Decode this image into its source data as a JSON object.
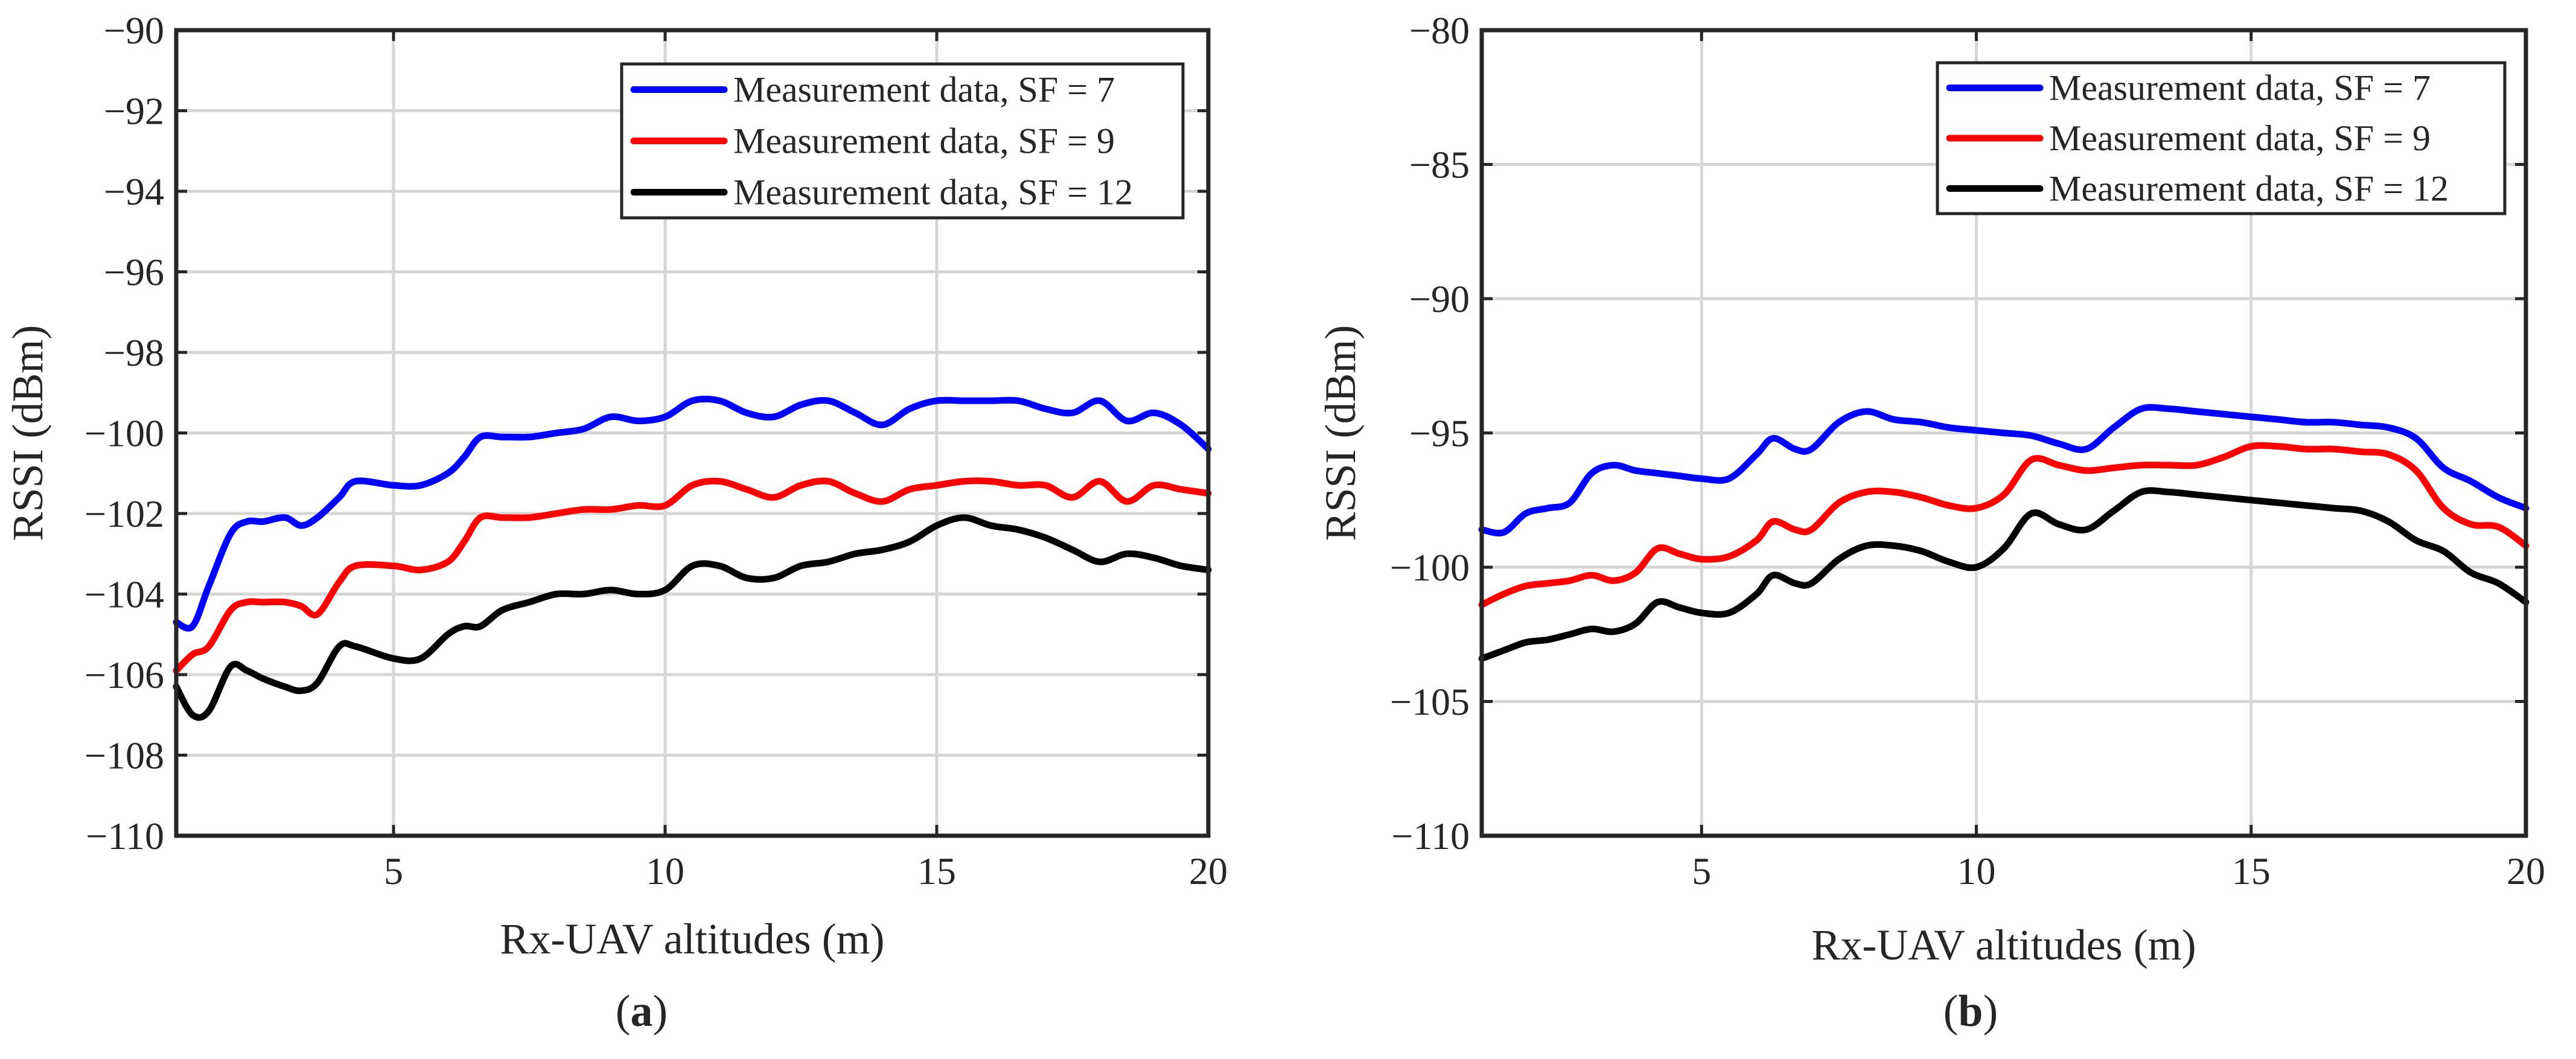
{
  "chart_data": [
    {
      "type": "line",
      "caption": "(a)",
      "caption_bold": "a",
      "xlabel": "Rx-UAV altitudes (m)",
      "ylabel": "RSSI (dBm)",
      "xlim": [
        1,
        20
      ],
      "ylim": [
        -110,
        -90
      ],
      "xticks": [
        5,
        10,
        15,
        20
      ],
      "yticks": [
        -110,
        -108,
        -106,
        -104,
        -102,
        -100,
        -98,
        -96,
        -94,
        -92,
        -90
      ],
      "xtick_labels": [
        "5",
        "10",
        "15",
        "20"
      ],
      "ytick_labels": [
        "−110",
        "−108",
        "−106",
        "−104",
        "−102",
        "−100",
        "−98",
        "−96",
        "−94",
        "−92",
        "−90"
      ],
      "grid": true,
      "legend": "top-right",
      "series": [
        {
          "name": "Measurement data, SF = 7",
          "color": "#0000ff",
          "x": [
            1,
            1.3,
            1.6,
            2,
            2.3,
            2.6,
            3,
            3.3,
            3.6,
            4,
            4.3,
            5,
            5.5,
            6,
            6.3,
            6.6,
            7,
            7.5,
            8,
            8.5,
            9,
            9.5,
            10,
            10.5,
            11,
            11.5,
            12,
            12.5,
            13,
            13.5,
            14,
            14.5,
            15,
            15.5,
            16,
            16.5,
            17,
            17.5,
            18,
            18.5,
            19,
            19.5,
            20
          ],
          "y": [
            -104.7,
            -104.8,
            -103.8,
            -102.5,
            -102.2,
            -102.2,
            -102.1,
            -102.3,
            -102.1,
            -101.6,
            -101.2,
            -101.3,
            -101.3,
            -101.0,
            -100.6,
            -100.1,
            -100.1,
            -100.1,
            -100.0,
            -99.9,
            -99.6,
            -99.7,
            -99.6,
            -99.2,
            -99.2,
            -99.5,
            -99.6,
            -99.3,
            -99.2,
            -99.5,
            -99.8,
            -99.4,
            -99.2,
            -99.2,
            -99.2,
            -99.2,
            -99.4,
            -99.5,
            -99.2,
            -99.7,
            -99.5,
            -99.8,
            -100.4
          ]
        },
        {
          "name": "Measurement data, SF = 9",
          "color": "#ff0000",
          "x": [
            1,
            1.3,
            1.6,
            2,
            2.3,
            2.6,
            3,
            3.3,
            3.6,
            4,
            4.3,
            5,
            5.5,
            6,
            6.3,
            6.6,
            7,
            7.5,
            8,
            8.5,
            9,
            9.5,
            10,
            10.5,
            11,
            11.5,
            12,
            12.5,
            13,
            13.5,
            14,
            14.5,
            15,
            15.5,
            16,
            16.5,
            17,
            17.5,
            18,
            18.5,
            19,
            19.5,
            20
          ],
          "y": [
            -105.9,
            -105.5,
            -105.3,
            -104.4,
            -104.2,
            -104.2,
            -104.2,
            -104.3,
            -104.5,
            -103.7,
            -103.3,
            -103.3,
            -103.4,
            -103.2,
            -102.7,
            -102.1,
            -102.1,
            -102.1,
            -102.0,
            -101.9,
            -101.9,
            -101.8,
            -101.8,
            -101.3,
            -101.2,
            -101.4,
            -101.6,
            -101.3,
            -101.2,
            -101.5,
            -101.7,
            -101.4,
            -101.3,
            -101.2,
            -101.2,
            -101.3,
            -101.3,
            -101.6,
            -101.2,
            -101.7,
            -101.3,
            -101.4,
            -101.5
          ]
        },
        {
          "name": "Measurement data, SF = 12",
          "color": "#000000",
          "x": [
            1,
            1.3,
            1.6,
            2,
            2.3,
            2.6,
            3,
            3.3,
            3.6,
            4,
            4.3,
            5,
            5.5,
            6,
            6.3,
            6.6,
            7,
            7.5,
            8,
            8.5,
            9,
            9.5,
            10,
            10.5,
            11,
            11.5,
            12,
            12.5,
            13,
            13.5,
            14,
            14.5,
            15,
            15.5,
            16,
            16.5,
            17,
            17.5,
            18,
            18.5,
            19,
            19.5,
            20
          ],
          "y": [
            -106.3,
            -107.0,
            -106.9,
            -105.8,
            -105.9,
            -106.1,
            -106.3,
            -106.4,
            -106.2,
            -105.3,
            -105.3,
            -105.6,
            -105.6,
            -105.0,
            -104.8,
            -104.8,
            -104.4,
            -104.2,
            -104.0,
            -104.0,
            -103.9,
            -104.0,
            -103.9,
            -103.3,
            -103.3,
            -103.6,
            -103.6,
            -103.3,
            -103.2,
            -103.0,
            -102.9,
            -102.7,
            -102.3,
            -102.1,
            -102.3,
            -102.4,
            -102.6,
            -102.9,
            -103.2,
            -103.0,
            -103.1,
            -103.3,
            -103.4
          ]
        }
      ]
    },
    {
      "type": "line",
      "caption": "(b)",
      "caption_bold": "b",
      "xlabel": "Rx-UAV altitudes (m)",
      "ylabel": "RSSI (dBm)",
      "xlim": [
        1,
        20
      ],
      "ylim": [
        -110,
        -80
      ],
      "xticks": [
        5,
        10,
        15,
        20
      ],
      "yticks": [
        -110,
        -105,
        -100,
        -95,
        -90,
        -85,
        -80
      ],
      "xtick_labels": [
        "5",
        "10",
        "15",
        "20"
      ],
      "ytick_labels": [
        "−110",
        "−105",
        "−100",
        "−95",
        "−90",
        "−85",
        "−80"
      ],
      "grid": true,
      "legend": "top-right",
      "series": [
        {
          "name": "Measurement data, SF = 7",
          "color": "#0000ff",
          "x": [
            1,
            1.4,
            1.8,
            2.2,
            2.6,
            3,
            3.4,
            3.8,
            4.2,
            4.6,
            5,
            5.5,
            6,
            6.3,
            6.7,
            7,
            7.5,
            8,
            8.5,
            9,
            9.5,
            10,
            10.5,
            11,
            11.5,
            12,
            12.5,
            13,
            13.5,
            14,
            14.5,
            15,
            15.5,
            16,
            16.5,
            17,
            17.5,
            18,
            18.5,
            19,
            19.5,
            20
          ],
          "y": [
            -98.6,
            -98.7,
            -98.0,
            -97.8,
            -97.6,
            -96.5,
            -96.2,
            -96.4,
            -96.5,
            -96.6,
            -96.7,
            -96.7,
            -95.8,
            -95.2,
            -95.6,
            -95.6,
            -94.6,
            -94.2,
            -94.5,
            -94.6,
            -94.8,
            -94.9,
            -95.0,
            -95.1,
            -95.4,
            -95.6,
            -94.8,
            -94.1,
            -94.1,
            -94.2,
            -94.3,
            -94.4,
            -94.5,
            -94.6,
            -94.6,
            -94.7,
            -94.8,
            -95.2,
            -96.3,
            -96.8,
            -97.4,
            -97.8
          ]
        },
        {
          "name": "Measurement data, SF = 9",
          "color": "#ff0000",
          "x": [
            1,
            1.4,
            1.8,
            2.2,
            2.6,
            3,
            3.4,
            3.8,
            4.2,
            4.6,
            5,
            5.5,
            6,
            6.3,
            6.7,
            7,
            7.5,
            8,
            8.5,
            9,
            9.5,
            10,
            10.5,
            11,
            11.5,
            12,
            12.5,
            13,
            13.5,
            14,
            14.5,
            15,
            15.5,
            16,
            16.5,
            17,
            17.5,
            18,
            18.5,
            19,
            19.5,
            20
          ],
          "y": [
            -101.4,
            -101.0,
            -100.7,
            -100.6,
            -100.5,
            -100.3,
            -100.5,
            -100.2,
            -99.3,
            -99.5,
            -99.7,
            -99.6,
            -99.0,
            -98.3,
            -98.6,
            -98.6,
            -97.6,
            -97.2,
            -97.2,
            -97.4,
            -97.7,
            -97.8,
            -97.3,
            -96.0,
            -96.2,
            -96.4,
            -96.3,
            -96.2,
            -96.2,
            -96.2,
            -95.9,
            -95.5,
            -95.5,
            -95.6,
            -95.6,
            -95.7,
            -95.8,
            -96.4,
            -97.8,
            -98.4,
            -98.5,
            -99.2
          ]
        },
        {
          "name": "Measurement data, SF = 12",
          "color": "#000000",
          "x": [
            1,
            1.4,
            1.8,
            2.2,
            2.6,
            3,
            3.4,
            3.8,
            4.2,
            4.6,
            5,
            5.5,
            6,
            6.3,
            6.7,
            7,
            7.5,
            8,
            8.5,
            9,
            9.5,
            10,
            10.5,
            11,
            11.5,
            12,
            12.5,
            13,
            13.5,
            14,
            14.5,
            15,
            15.5,
            16,
            16.5,
            17,
            17.5,
            18,
            18.5,
            19,
            19.5,
            20
          ],
          "y": [
            -103.4,
            -103.1,
            -102.8,
            -102.7,
            -102.5,
            -102.3,
            -102.4,
            -102.1,
            -101.3,
            -101.5,
            -101.7,
            -101.7,
            -101.0,
            -100.3,
            -100.6,
            -100.6,
            -99.7,
            -99.2,
            -99.2,
            -99.4,
            -99.8,
            -100.0,
            -99.3,
            -98.0,
            -98.4,
            -98.6,
            -97.9,
            -97.2,
            -97.2,
            -97.3,
            -97.4,
            -97.5,
            -97.6,
            -97.7,
            -97.8,
            -97.9,
            -98.3,
            -99.0,
            -99.4,
            -100.2,
            -100.6,
            -101.3
          ]
        }
      ]
    }
  ]
}
